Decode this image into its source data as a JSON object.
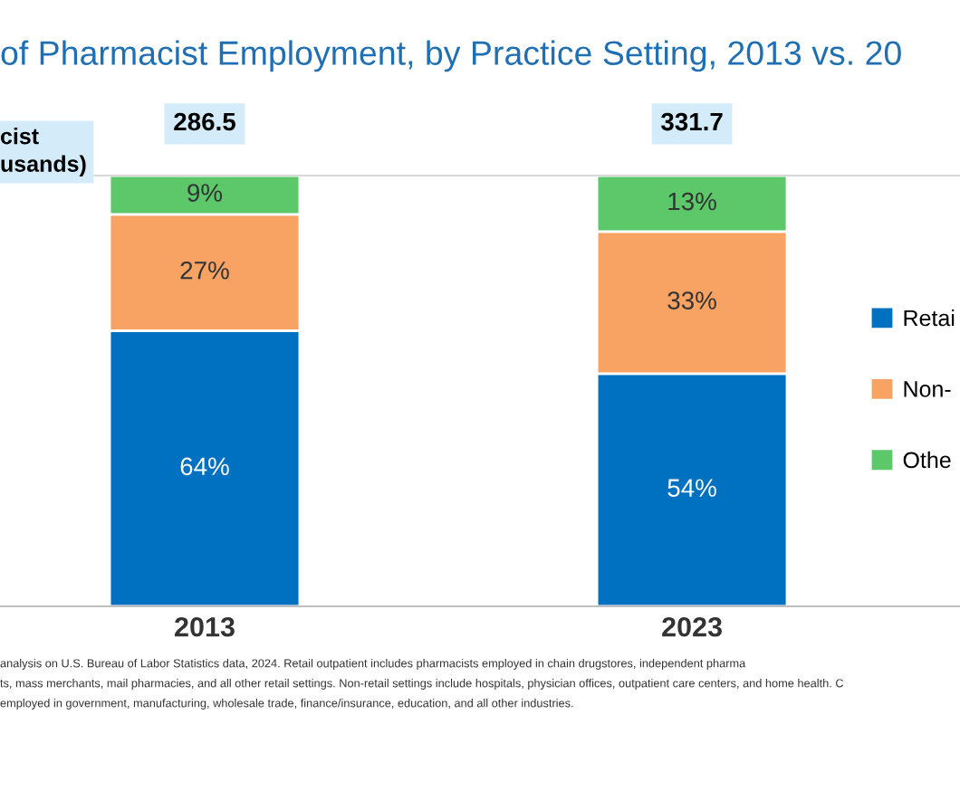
{
  "chart_data": {
    "type": "bar",
    "stacked": true,
    "title": "of Pharmacist Employment, by Practice Setting, 2013 vs. 20",
    "categories": [
      "2013",
      "2023"
    ],
    "series": [
      {
        "name": "Retai",
        "color": "#0070c0",
        "values": [
          64,
          54
        ],
        "value_labels": [
          "64%",
          "54%"
        ]
      },
      {
        "name": "Non-",
        "color": "#f8a264",
        "values": [
          27,
          33
        ],
        "value_labels": [
          "27%",
          "33%"
        ]
      },
      {
        "name": "Othe",
        "color": "#5cc86a",
        "values": [
          9,
          13
        ],
        "value_labels": [
          "9%",
          "13%"
        ]
      }
    ],
    "legend": "right",
    "annotations": [
      "cist\nusands)",
      "286.5",
      "331.7",
      "analysis on U.S. Bureau of Labor Statistics data, 2024. Retail outpatient includes pharmacists employed in chain drugstores, independent pharma",
      "ts, mass merchants, mail pharmacies, and all other retail settings. Non-retail settings include hospitals, physician offices, outpatient care centers, and home health. C",
      "employed in government, manufacturing, wholesale trade, finance/insurance, education, and all other industries."
    ]
  }
}
